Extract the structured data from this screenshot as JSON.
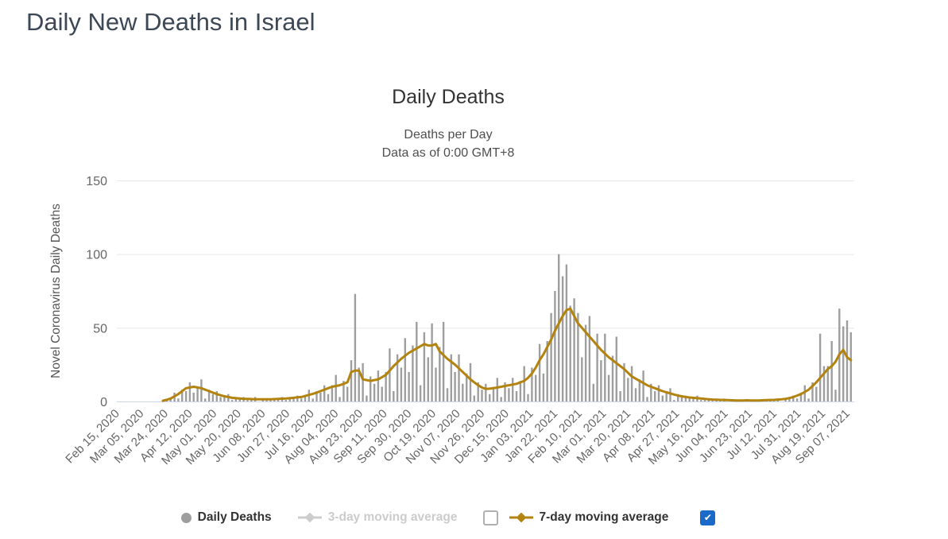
{
  "page": {
    "title": "Daily New Deaths in Israel"
  },
  "chart": {
    "title": "Daily Deaths",
    "subtitle1": "Deaths per Day",
    "subtitle2": "Data as of 0:00 GMT+8",
    "y_axis_title": "Novel Coronavirus Daily Deaths",
    "legend": {
      "daily_deaths": "Daily Deaths",
      "avg3": "3-day moving average",
      "avg7": "7-day moving average",
      "avg3_checkbox_checked": false,
      "avg7_checkbox_checked": true
    },
    "icons": {
      "checkmark": "✔"
    },
    "colors": {
      "bars": "#9e9e9e",
      "avg7_line": "#b2830e",
      "disabled_legend": "#cccccc",
      "checkbox_checked": "#1b6ac9",
      "grid_line": "#e6e6e6",
      "axis_line": "#ccd6eb",
      "tick_text": "#666666"
    }
  },
  "chart_data": {
    "type": "bar",
    "title": "Daily Deaths",
    "xlabel": "",
    "ylabel": "Novel Coronavirus Daily Deaths",
    "x_start_date": "Feb 15, 2020",
    "x_end_date": "Sep 12, 2021",
    "sample_step_days": 3,
    "x_tick_interval_days": 19,
    "x_tick_labels": [
      "Feb 15, 2020",
      "Mar 05, 2020",
      "Mar 24, 2020",
      "Apr 12, 2020",
      "May 01, 2020",
      "May 20, 2020",
      "Jun 08, 2020",
      "Jun 27, 2020",
      "Jul 16, 2020",
      "Aug 04, 2020",
      "Aug 23, 2020",
      "Sep 11, 2020",
      "Sep 30, 2020",
      "Oct 19, 2020",
      "Nov 07, 2020",
      "Nov 26, 2020",
      "Dec 15, 2020",
      "Jan 03, 2021",
      "Jan 22, 2021",
      "Feb 10, 2021",
      "Mar 01, 2021",
      "Mar 20, 2021",
      "Apr 08, 2021",
      "Apr 27, 2021",
      "May 16, 2021",
      "Jun 04, 2021",
      "Jun 23, 2021",
      "Jul 12, 2021",
      "Jul 31, 2021",
      "Aug 19, 2021",
      "Sep 07, 2021"
    ],
    "y_ticks": [
      0,
      50,
      100,
      150
    ],
    "ylim": [
      0,
      150
    ],
    "grid": true,
    "legend_position": "bottom",
    "series": [
      {
        "name": "Daily Deaths",
        "type": "bar",
        "color": "#9e9e9e",
        "visible": true,
        "values": [
          0,
          0,
          0,
          0,
          0,
          0,
          0,
          0,
          0,
          0,
          0,
          0,
          1,
          1,
          2,
          6,
          2,
          8,
          7,
          13,
          6,
          10,
          15,
          2,
          8,
          5,
          7,
          3,
          4,
          5,
          1,
          3,
          2,
          3,
          1,
          2,
          3,
          0,
          2,
          1,
          2,
          1,
          2,
          3,
          1,
          3,
          2,
          4,
          2,
          4,
          8,
          2,
          7,
          6,
          11,
          5,
          11,
          18,
          3,
          14,
          10,
          28,
          73,
          23,
          26,
          4,
          17,
          12,
          21,
          10,
          20,
          36,
          7,
          32,
          23,
          43,
          20,
          38,
          54,
          11,
          47,
          30,
          53,
          23,
          37,
          54,
          9,
          32,
          20,
          32,
          12,
          19,
          26,
          4,
          13,
          8,
          12,
          5,
          10,
          16,
          3,
          13,
          9,
          16,
          7,
          14,
          24,
          5,
          23,
          18,
          39,
          19,
          41,
          60,
          75,
          100,
          85,
          93,
          65,
          70,
          60,
          30,
          52,
          58,
          12,
          46,
          28,
          46,
          18,
          31,
          44,
          7,
          26,
          16,
          24,
          9,
          15,
          21,
          3,
          12,
          7,
          11,
          4,
          7,
          9,
          1,
          5,
          3,
          4,
          2,
          3,
          4,
          1,
          2,
          1,
          2,
          1,
          1,
          2,
          0,
          1,
          1,
          1,
          0,
          1,
          1,
          0,
          1,
          1,
          1,
          1,
          1,
          2,
          0,
          2,
          2,
          4,
          2,
          6,
          11,
          2,
          13,
          10,
          46,
          24,
          24,
          41,
          8,
          63,
          51,
          55,
          47
        ]
      },
      {
        "name": "3-day moving average",
        "type": "line",
        "color": "#cccccc",
        "visible": false,
        "values": []
      },
      {
        "name": "7-day moving average",
        "type": "line",
        "color": "#b2830e",
        "visible": true,
        "values": [
          0,
          0,
          0,
          0,
          0,
          0,
          0,
          0,
          0,
          0,
          0,
          0,
          0.5,
          1.2,
          2,
          3.5,
          5,
          7,
          9,
          9.5,
          10,
          9.5,
          9,
          8,
          7,
          6,
          5,
          4.2,
          3.5,
          3,
          2.5,
          2.2,
          2,
          1.8,
          1.7,
          1.6,
          1.5,
          1.5,
          1.5,
          1.5,
          1.5,
          1.6,
          1.8,
          1.9,
          2,
          2.2,
          2.5,
          2.8,
          3,
          3.7,
          4.5,
          5.2,
          6,
          7,
          8,
          9,
          10,
          10.5,
          11,
          12,
          13,
          20,
          21,
          21,
          15,
          14.5,
          14,
          14.5,
          15,
          16.5,
          18,
          21,
          24,
          26.5,
          29,
          31,
          33,
          34.5,
          36,
          37.5,
          39,
          38,
          38,
          39,
          34,
          31.5,
          29,
          27,
          25,
          22.5,
          20,
          17.5,
          15,
          13,
          11,
          9.5,
          8.5,
          8.7,
          9,
          9.5,
          10,
          10.5,
          11,
          11.5,
          12,
          13,
          14,
          16,
          19,
          23,
          28,
          32,
          37,
          42,
          48,
          53,
          58,
          62,
          63,
          58,
          53,
          50,
          47,
          44,
          41,
          38,
          35,
          32.5,
          30,
          28,
          26,
          24,
          22,
          19.5,
          17,
          15.5,
          14,
          12.5,
          11,
          10,
          9,
          8,
          7,
          6.2,
          5.5,
          4.7,
          4,
          3.5,
          3,
          2.7,
          2.5,
          2.2,
          2,
          1.7,
          1.5,
          1.3,
          1.2,
          1.1,
          1,
          0.9,
          0.8,
          0.7,
          0.7,
          0.7,
          0.8,
          0.7,
          0.7,
          0.7,
          0.8,
          0.9,
          1,
          1.1,
          1.3,
          1.5,
          1.8,
          2.3,
          3,
          4,
          5,
          6.5,
          8,
          10.5,
          13,
          16,
          19,
          22,
          24,
          27,
          32,
          35,
          30,
          28
        ]
      }
    ]
  }
}
